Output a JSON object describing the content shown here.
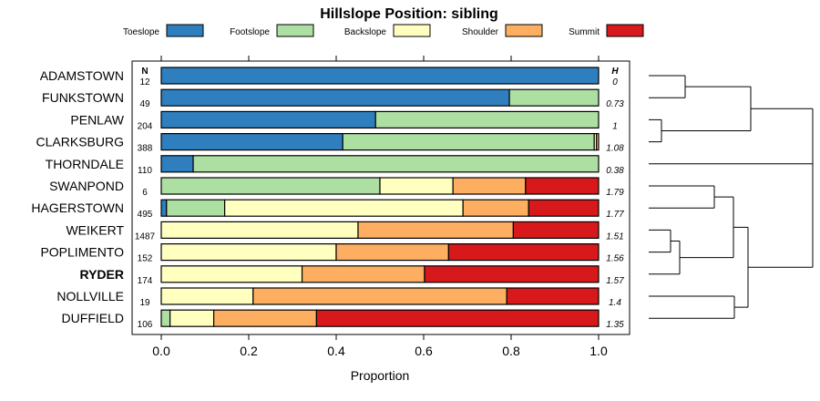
{
  "chart_data": {
    "type": "bar",
    "orientation": "horizontal-stacked",
    "title": "Hillslope Position: sibling",
    "xlabel": "Proportion",
    "xlim": [
      0,
      1
    ],
    "xticks": [
      {
        "value": 0,
        "label": "0.0"
      },
      {
        "value": 0.2,
        "label": "0.2"
      },
      {
        "value": 0.4,
        "label": "0.4"
      },
      {
        "value": 0.6,
        "label": "0.6"
      },
      {
        "value": 0.8,
        "label": "0.8"
      },
      {
        "value": 1.0,
        "label": "1.0"
      }
    ],
    "n_header": "N",
    "h_header": "H",
    "legend_placement": "top",
    "series": [
      {
        "name": "Toeslope",
        "color": "#2f7fbe"
      },
      {
        "name": "Footslope",
        "color": "#addea2"
      },
      {
        "name": "Backslope",
        "color": "#ffffc0"
      },
      {
        "name": "Shoulder",
        "color": "#fdae61"
      },
      {
        "name": "Summit",
        "color": "#d7191c"
      }
    ],
    "rows": [
      {
        "name": "ADAMSTOWN",
        "bold": false,
        "n": "12",
        "h": "0",
        "values": [
          1.0,
          0,
          0,
          0,
          0
        ]
      },
      {
        "name": "FUNKSTOWN",
        "bold": false,
        "n": "49",
        "h": "0.73",
        "values": [
          0.796,
          0.204,
          0,
          0,
          0
        ]
      },
      {
        "name": "PENLAW",
        "bold": false,
        "n": "204",
        "h": "1",
        "values": [
          0.49,
          0.51,
          0,
          0,
          0
        ]
      },
      {
        "name": "CLARKSBURG",
        "bold": false,
        "n": "388",
        "h": "1.08",
        "values": [
          0.415,
          0.575,
          0.005,
          0.005,
          0
        ]
      },
      {
        "name": "THORNDALE",
        "bold": false,
        "n": "110",
        "h": "0.38",
        "values": [
          0.073,
          0.927,
          0,
          0,
          0
        ]
      },
      {
        "name": "SWANPOND",
        "bold": false,
        "n": "6",
        "h": "1.79",
        "values": [
          0,
          0.5,
          0.167,
          0.166,
          0.167
        ]
      },
      {
        "name": "HAGERSTOWN",
        "bold": false,
        "n": "495",
        "h": "1.77",
        "values": [
          0.012,
          0.133,
          0.545,
          0.15,
          0.16
        ]
      },
      {
        "name": "WEIKERT",
        "bold": false,
        "n": "1487",
        "h": "1.51",
        "values": [
          0,
          0,
          0.45,
          0.355,
          0.195
        ]
      },
      {
        "name": "POPLIMENTO",
        "bold": false,
        "n": "152",
        "h": "1.56",
        "values": [
          0,
          0,
          0.4,
          0.257,
          0.343
        ]
      },
      {
        "name": "RYDER",
        "bold": true,
        "n": "174",
        "h": "1.57",
        "values": [
          0,
          0,
          0.322,
          0.28,
          0.398
        ]
      },
      {
        "name": "NOLLVILLE",
        "bold": false,
        "n": "19",
        "h": "1.4",
        "values": [
          0,
          0,
          0.21,
          0.58,
          0.21
        ]
      },
      {
        "name": "DUFFIELD",
        "bold": false,
        "n": "106",
        "h": "1.35",
        "values": [
          0,
          0.02,
          0.1,
          0.235,
          0.645
        ]
      }
    ]
  }
}
